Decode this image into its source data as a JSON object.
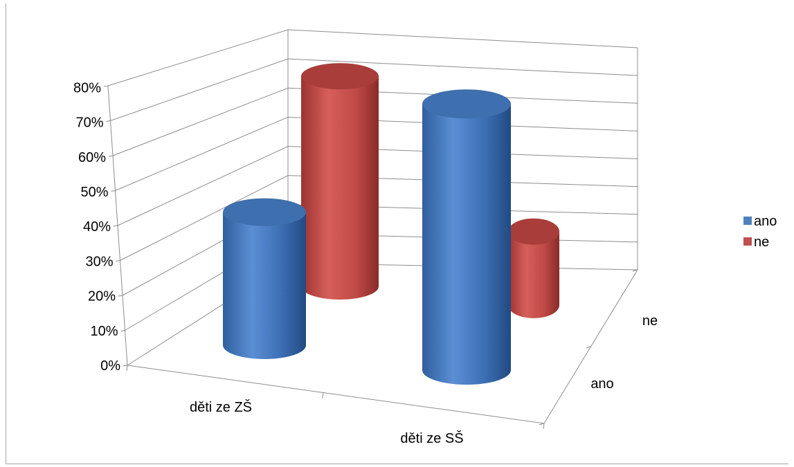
{
  "chart_data": {
    "type": "bar3d-cylinder",
    "categories": [
      "děti ze ZŠ",
      "děti ze SŠ"
    ],
    "series": [
      {
        "name": "ano",
        "values": [
          0.38,
          0.76
        ],
        "color": "#4f81bd"
      },
      {
        "name": "ne",
        "values": [
          0.6,
          0.21
        ],
        "color": "#c0504d"
      }
    ],
    "depth_labels": [
      "ano",
      "ne"
    ],
    "y_ticks": [
      "0%",
      "10%",
      "20%",
      "30%",
      "40%",
      "50%",
      "60%",
      "70%",
      "80%"
    ],
    "ylim": [
      0,
      0.8
    ],
    "legend_position": "right",
    "grid": true,
    "title": "",
    "xlabel": "",
    "ylabel": ""
  }
}
